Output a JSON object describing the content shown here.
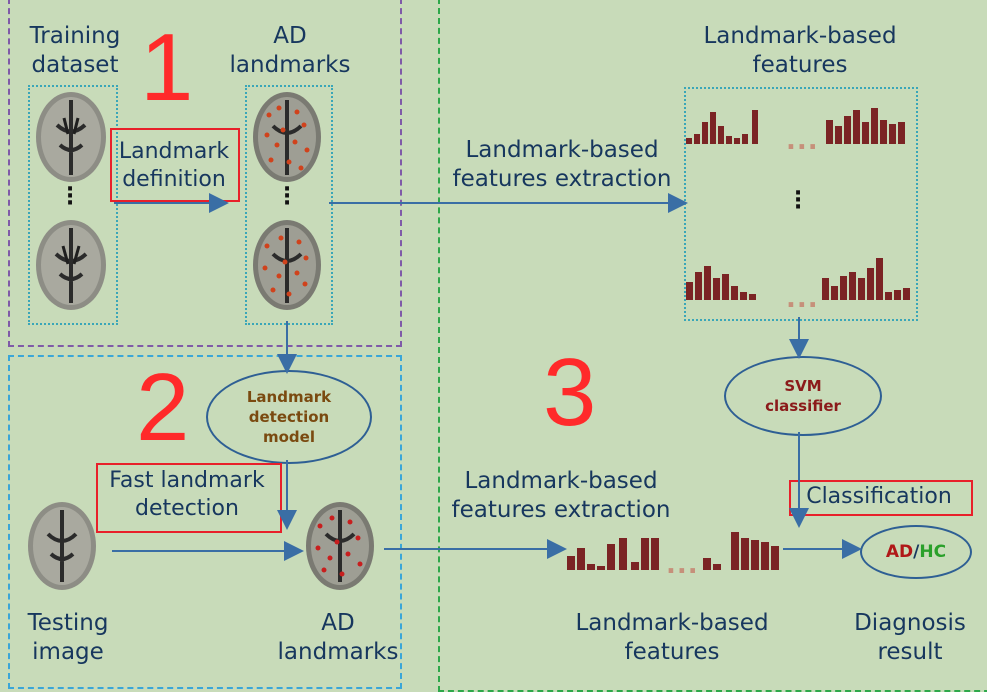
{
  "stage1": {
    "number": "1",
    "training_label": "Training\ndataset",
    "ad_landmarks_label": "AD\nlandmarks",
    "landmark_definition_label": "Landmark\ndefinition"
  },
  "stage2": {
    "number": "2",
    "detection_model_label": "Landmark\ndetection\nmodel",
    "fast_detection_label": "Fast landmark\ndetection",
    "testing_image_label": "Testing\nimage",
    "ad_landmarks_label": "AD\nlandmarks"
  },
  "stage3": {
    "number": "3",
    "features_top_label": "Landmark-based\nfeatures",
    "extraction_top_label": "Landmark-based\nfeatures extraction",
    "extraction_bottom_label": "Landmark-based\nfeatures extraction",
    "features_bottom_label": "Landmark-based\nfeatures",
    "svm_label": "SVM\nclassifier",
    "classification_label": "Classification",
    "result_ad": "AD",
    "result_sep": "/",
    "result_hc": "HC",
    "diagnosis_label": "Diagnosis\nresult"
  },
  "colors": {
    "background": "#c8dbb9",
    "text": "#17375e",
    "stage_number": "#ff2a2a",
    "highlight_box": "#e8202a",
    "bar": "#7b2424",
    "landmark_dot": "#d0421c",
    "model_text": "#7a4a10",
    "svm_text": "#8b1a1a",
    "result_ad": "#b01818",
    "result_hc": "#2aa02a"
  },
  "icons": {
    "brain": "axial-brain-mri-icon",
    "vertical_ellipsis": "vertical-ellipsis-icon",
    "horizontal_ellipsis": "horizontal-ellipsis-icon"
  }
}
